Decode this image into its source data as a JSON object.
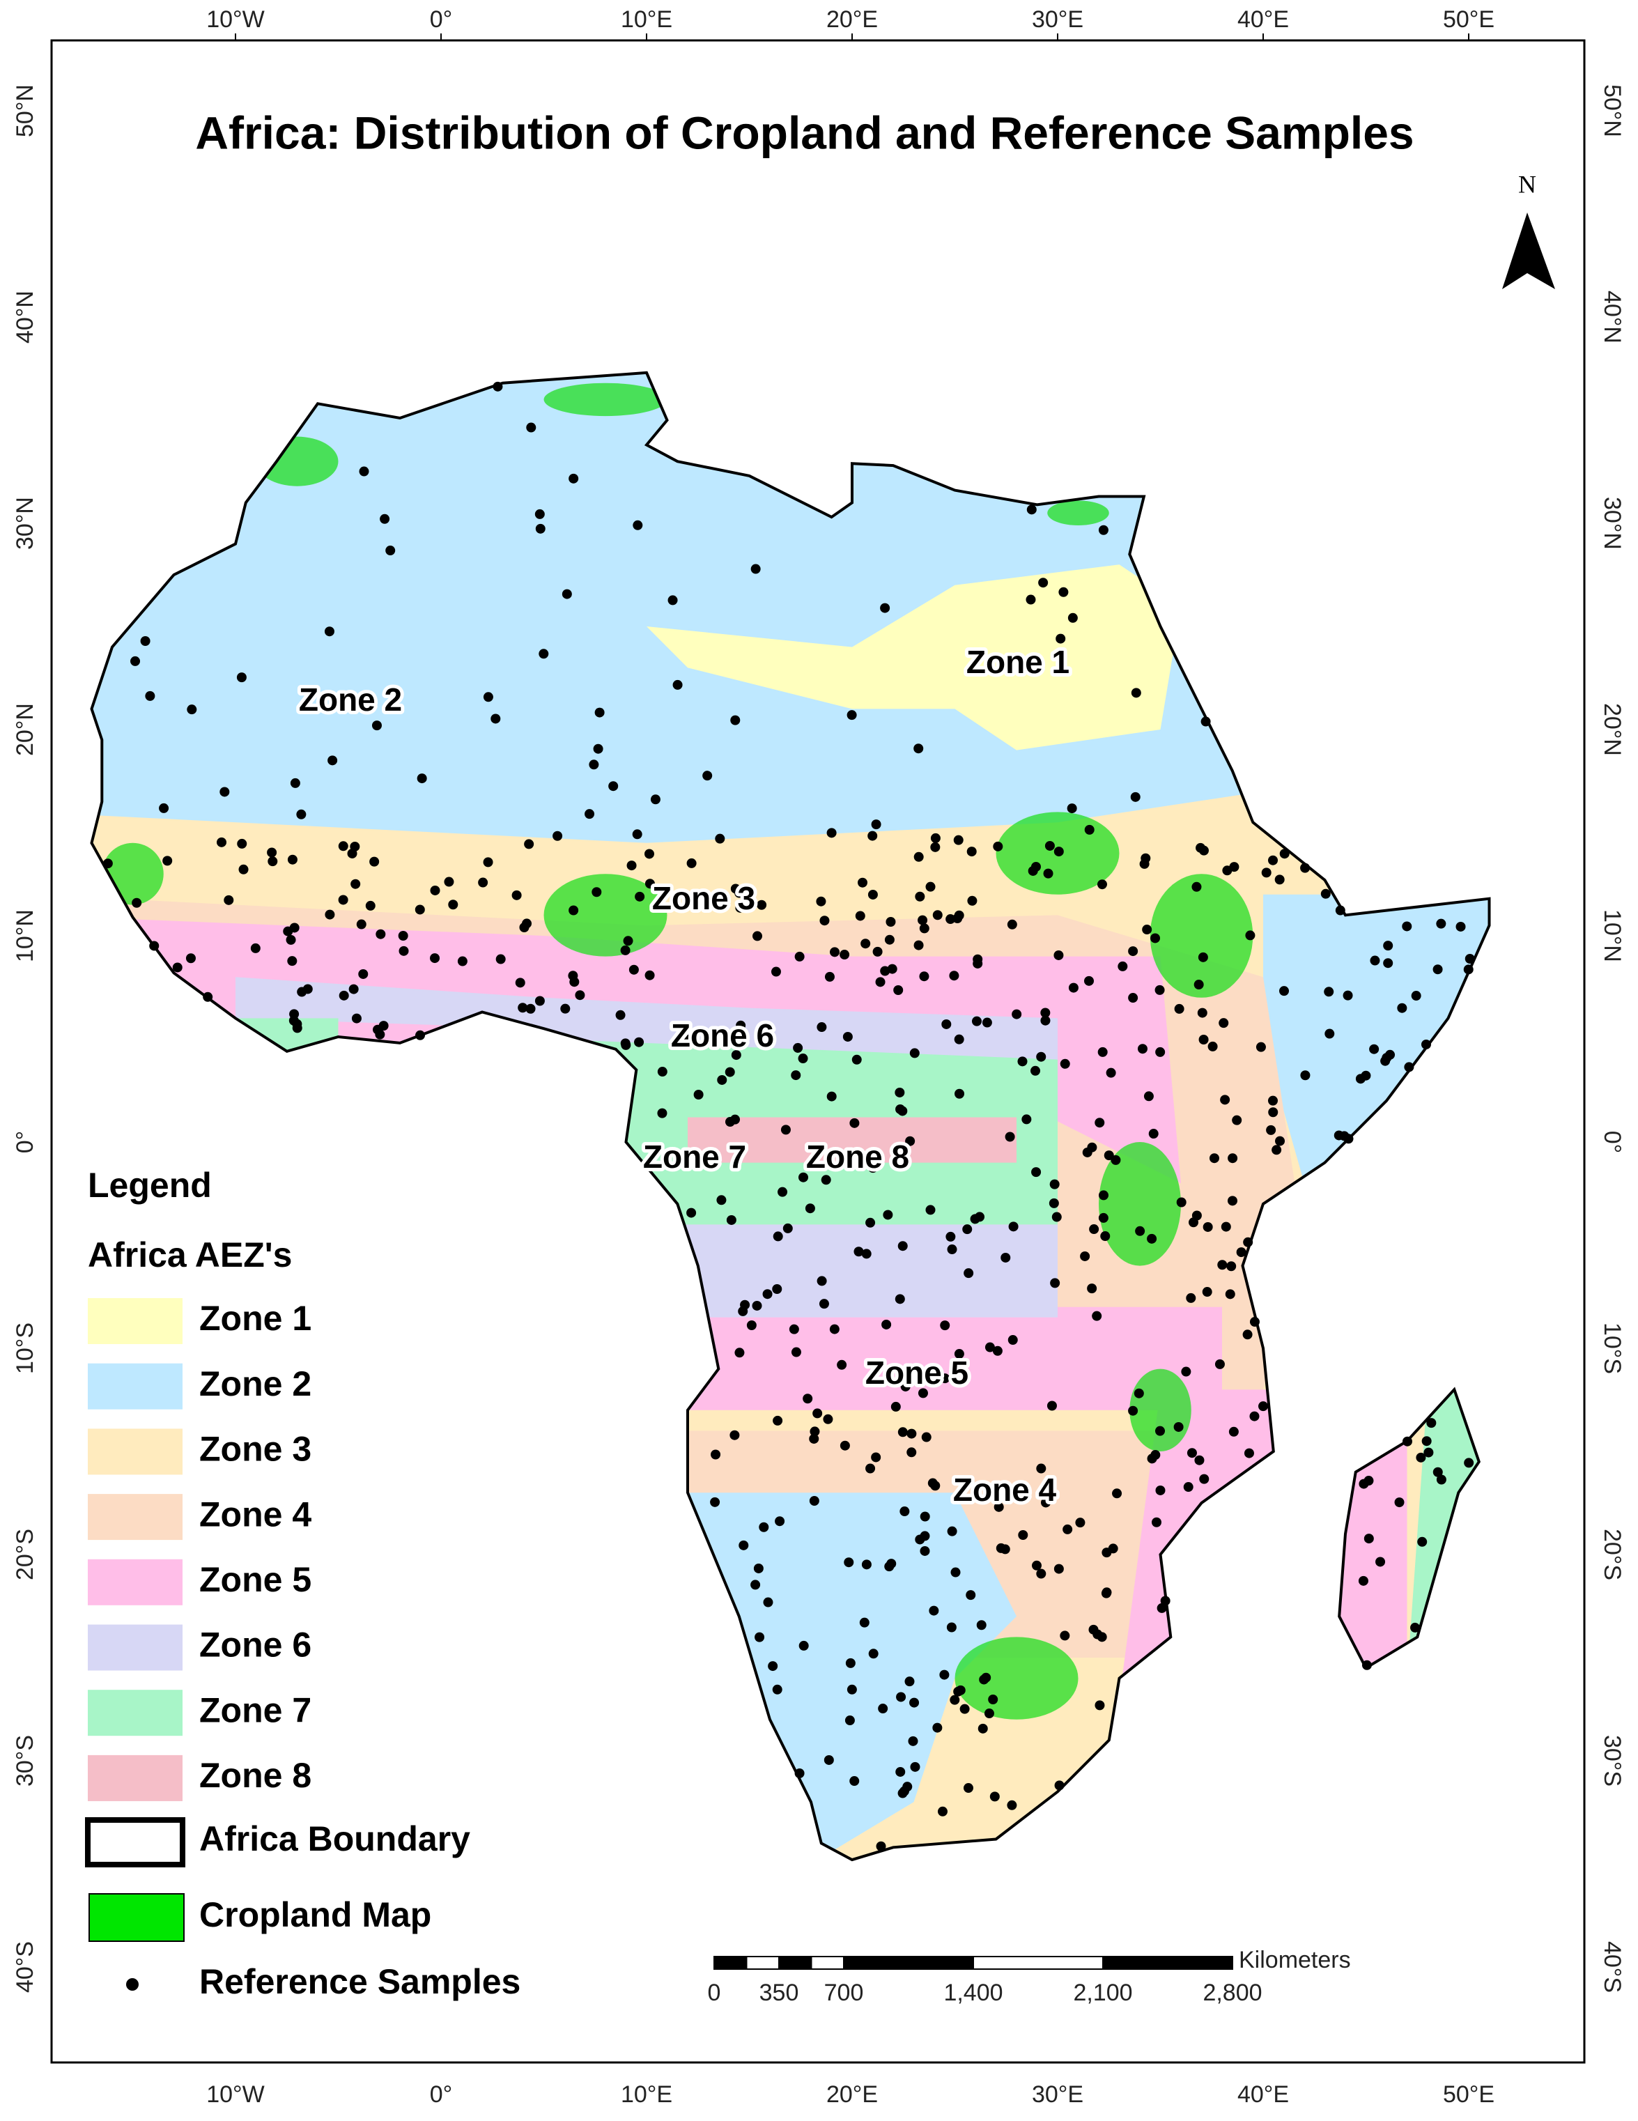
{
  "title": "Africa: Distribution of Cropland and Reference Samples",
  "north": "N",
  "lon_labels": [
    "10°W",
    "0°",
    "10°E",
    "20°E",
    "30°E",
    "40°E",
    "50°E"
  ],
  "lat_labels": [
    "50°N",
    "40°N",
    "30°N",
    "20°N",
    "10°N",
    "0°",
    "10°S",
    "20°S",
    "30°S",
    "40°S"
  ],
  "legend": {
    "title": "Legend",
    "subtitle": "Africa AEZ's",
    "zones": [
      {
        "label": "Zone 1",
        "color": "#ffffbe"
      },
      {
        "label": "Zone 2",
        "color": "#bee8ff"
      },
      {
        "label": "Zone 3",
        "color": "#ffebbe"
      },
      {
        "label": "Zone 4",
        "color": "#fcdcc4"
      },
      {
        "label": "Zone 5",
        "color": "#ffbee8"
      },
      {
        "label": "Zone 6",
        "color": "#d7d7f5"
      },
      {
        "label": "Zone 7",
        "color": "#a8f5c8"
      },
      {
        "label": "Zone 8",
        "color": "#f5bec8"
      }
    ],
    "boundary": "Africa Boundary",
    "cropland": "Cropland Map",
    "samples": "Reference Samples"
  },
  "scale_bar": {
    "unit": "Kilometers",
    "labels": [
      "0",
      "350",
      "700",
      "1,400",
      "2,100",
      "2,800"
    ]
  }
}
